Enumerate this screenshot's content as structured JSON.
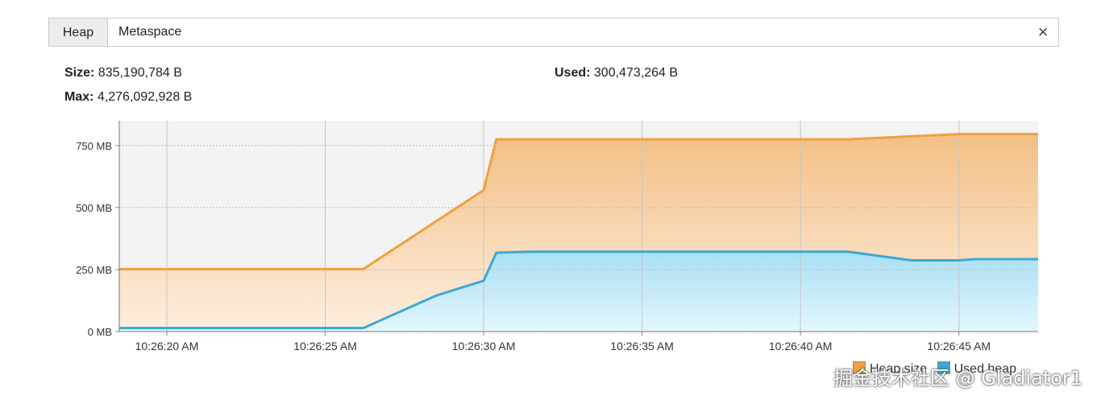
{
  "tabs": [
    {
      "label": "Heap",
      "active": true
    },
    {
      "label": "Metaspace",
      "active": false
    }
  ],
  "close_symbol": "×",
  "stats": {
    "size_label": "Size:",
    "size_value": "835,190,784 B",
    "max_label": "Max:",
    "max_value": "4,276,092,928 B",
    "used_label": "Used:",
    "used_value": "300,473,264 B"
  },
  "chart_data": {
    "type": "area",
    "y_ticks": [
      "0 MB",
      "250 MB",
      "500 MB",
      "750 MB"
    ],
    "y_tick_values": [
      0,
      250,
      500,
      750
    ],
    "ylim": [
      0,
      850
    ],
    "x_ticks": [
      "10:26:20 AM",
      "10:26:25 AM",
      "10:26:30 AM",
      "10:26:35 AM",
      "10:26:40 AM",
      "10:26:45 AM"
    ],
    "x_tick_values": [
      20,
      25,
      30,
      35,
      40,
      45
    ],
    "xlim": [
      18.5,
      47.5
    ],
    "grid": true,
    "legend_position": "bottom-right",
    "series": [
      {
        "name": "Heap size",
        "color": "#f0a040",
        "x": [
          18.5,
          26.2,
          30.0,
          30.4,
          41.5,
          45.0,
          47.5
        ],
        "values": [
          252,
          252,
          570,
          775,
          775,
          796,
          796
        ]
      },
      {
        "name": "Used heap",
        "color": "#3aa8d8",
        "x": [
          18.5,
          26.2,
          28.5,
          30.0,
          30.4,
          31.5,
          41.5,
          43.5,
          45.0,
          45.5,
          47.5
        ],
        "values": [
          14,
          14,
          145,
          205,
          318,
          322,
          322,
          287,
          287,
          292,
          292
        ]
      }
    ]
  },
  "watermark": "掘金技术社区 @ Gladiator1"
}
